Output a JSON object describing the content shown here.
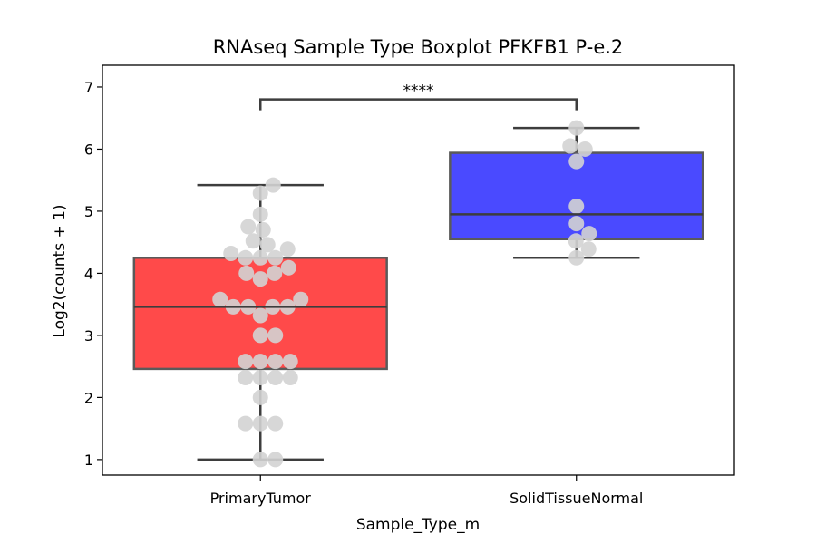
{
  "chart_data": {
    "type": "box",
    "title": "RNAseq Sample Type Boxplot PFKFB1 P-e.2",
    "xlabel": "Sample_Type_m",
    "ylabel": "Log2(counts + 1)",
    "ylim": [
      0.75,
      7.35
    ],
    "yticks": [
      1,
      2,
      3,
      4,
      5,
      6,
      7
    ],
    "grid": false,
    "categories": [
      "PrimaryTumor",
      "SolidTissueNormal"
    ],
    "boxes": [
      {
        "category": "PrimaryTumor",
        "color": "#ff4a4a",
        "whisker_low": 1.0,
        "q1": 2.46,
        "median": 3.46,
        "q3": 4.25,
        "whisker_high": 5.42
      },
      {
        "category": "SolidTissueNormal",
        "color": "#4a4aff",
        "whisker_low": 4.25,
        "q1": 4.55,
        "median": 4.95,
        "q3": 5.94,
        "whisker_high": 6.34
      }
    ],
    "points": [
      {
        "category": "PrimaryTumor",
        "values": [
          1.0,
          1.0,
          1.58,
          1.58,
          1.58,
          2.0,
          2.32,
          2.32,
          2.32,
          2.32,
          2.58,
          2.58,
          2.58,
          2.58,
          3.0,
          3.0,
          3.32,
          3.46,
          3.46,
          3.46,
          3.46,
          3.58,
          3.58,
          3.91,
          4.0,
          4.0,
          4.09,
          4.25,
          4.25,
          4.25,
          4.32,
          4.39,
          4.46,
          4.52,
          4.7,
          4.75,
          4.95,
          5.29,
          5.42
        ]
      },
      {
        "category": "SolidTissueNormal",
        "values": [
          4.25,
          4.39,
          4.52,
          4.64,
          4.8,
          5.08,
          5.8,
          6.0,
          6.05,
          6.34
        ]
      }
    ],
    "point_color": "#d3d3d3",
    "significance": {
      "label": "****",
      "from": "PrimaryTumor",
      "to": "SolidTissueNormal",
      "y": 6.8
    }
  }
}
